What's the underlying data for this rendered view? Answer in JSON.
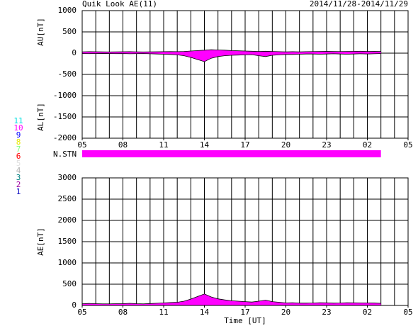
{
  "title": "Quik Look AE(11)",
  "date_range": "2014/11/28-2014/11/29",
  "chart_data": [
    {
      "type": "area",
      "ylabels": [
        "AU[nT]",
        "AL[nT]"
      ],
      "x": [
        5,
        5.5,
        6,
        6.5,
        7,
        7.5,
        8,
        8.5,
        9,
        9.5,
        10,
        10.5,
        11,
        11.5,
        12,
        12.5,
        13,
        13.5,
        14,
        14.5,
        15,
        15.5,
        16,
        16.5,
        17,
        17.5,
        18,
        18.5,
        19,
        19.5,
        20,
        20.5,
        21,
        21.5,
        22,
        22.5,
        23,
        23.5,
        24,
        24.5,
        25,
        25.5,
        26,
        26.5,
        27
      ],
      "series": [
        {
          "color": "#ff00ff",
          "values": [
            30,
            35,
            32,
            30,
            28,
            30,
            32,
            35,
            30,
            28,
            30,
            32,
            35,
            38,
            35,
            40,
            50,
            60,
            70,
            80,
            75,
            70,
            60,
            55,
            50,
            45,
            40,
            45,
            40,
            35,
            30,
            35,
            30,
            35,
            38,
            40,
            42,
            40,
            38,
            40,
            42,
            45,
            40,
            42,
            40
          ]
        },
        {
          "color": "#ff00ff",
          "values": [
            -10,
            -12,
            -10,
            -8,
            -10,
            -12,
            -10,
            -15,
            -12,
            -10,
            -15,
            -20,
            -25,
            -30,
            -40,
            -60,
            -100,
            -150,
            -200,
            -120,
            -80,
            -60,
            -50,
            -45,
            -40,
            -35,
            -60,
            -80,
            -50,
            -40,
            -30,
            -30,
            -25,
            -20,
            -20,
            -25,
            -20,
            -15,
            -20,
            -25,
            -20,
            -15,
            -20,
            -15,
            -10
          ]
        }
      ],
      "xlim": [
        5,
        29
      ],
      "xticks": [
        {
          "value": 5,
          "label": "05"
        },
        {
          "value": 8,
          "label": "08"
        },
        11,
        14,
        17,
        20,
        23,
        {
          "value": 26,
          "label": "02"
        },
        {
          "value": 29,
          "label": "05"
        }
      ],
      "ylim": [
        -2000,
        1000
      ],
      "yticks": [
        1000,
        500,
        0,
        -500,
        -1000,
        -1500,
        -2000
      ],
      "grid": true
    },
    {
      "type": "stations",
      "ylabel": "N.STN",
      "levels": [
        {
          "label": "11",
          "color": "#00e0e0"
        },
        {
          "label": "10",
          "color": "#ff00ff"
        },
        {
          "label": "9",
          "color": "#0000ff"
        },
        {
          "label": "8",
          "color": "#e8e800"
        },
        {
          "label": "7",
          "color": "#80ff80"
        },
        {
          "label": "6",
          "color": "#ff0000"
        },
        {
          "label": "5",
          "color": "#e0e0e0"
        },
        {
          "label": "4",
          "color": "#b0b0b0"
        },
        {
          "label": "3",
          "color": "#008080"
        },
        {
          "label": "2",
          "color": "#a000a0"
        },
        {
          "label": "1",
          "color": "#0000c0"
        }
      ],
      "x": [
        5,
        27
      ],
      "values": [
        11,
        11
      ],
      "color": "#ff00ff",
      "xlim": [
        5,
        29
      ]
    },
    {
      "type": "area",
      "ylabel": "AE[nT]",
      "xlabel": "Time [UT]",
      "x": [
        5,
        5.5,
        6,
        6.5,
        7,
        7.5,
        8,
        8.5,
        9,
        9.5,
        10,
        10.5,
        11,
        11.5,
        12,
        12.5,
        13,
        13.5,
        14,
        14.5,
        15,
        15.5,
        16,
        16.5,
        17,
        17.5,
        18,
        18.5,
        19,
        19.5,
        20,
        20.5,
        21,
        21.5,
        22,
        22.5,
        23,
        23.5,
        24,
        24.5,
        25,
        25.5,
        26,
        26.5,
        27
      ],
      "series": [
        {
          "color": "#ff00ff",
          "values": [
            40,
            47,
            42,
            38,
            38,
            42,
            42,
            50,
            42,
            38,
            45,
            52,
            60,
            68,
            75,
            100,
            150,
            210,
            270,
            200,
            155,
            130,
            110,
            100,
            90,
            80,
            100,
            125,
            90,
            75,
            60,
            65,
            55,
            55,
            58,
            65,
            62,
            55,
            58,
            65,
            62,
            60,
            60,
            57,
            50
          ]
        }
      ],
      "xlim": [
        5,
        29
      ],
      "xticks": [
        {
          "value": 5,
          "label": "05"
        },
        {
          "value": 8,
          "label": "08"
        },
        11,
        14,
        17,
        20,
        23,
        {
          "value": 26,
          "label": "02"
        },
        {
          "value": 29,
          "label": "05"
        }
      ],
      "ylim": [
        0,
        3000
      ],
      "yticks": [
        3000,
        2500,
        2000,
        1500,
        1000,
        500,
        0
      ],
      "grid": true
    }
  ]
}
